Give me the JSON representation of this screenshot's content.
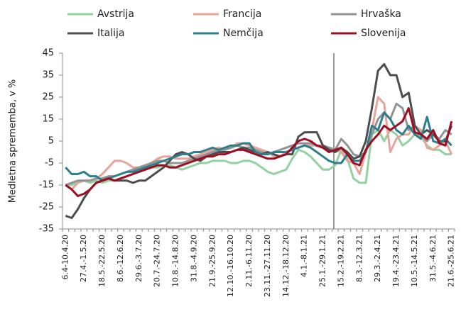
{
  "chart_data": {
    "type": "line",
    "y_label": "Medletna sprememba, v %",
    "categories": [
      "6.4-10.4.20",
      null,
      null,
      "27.4.-1.5.20",
      null,
      null,
      "18.5.-22.5.20",
      null,
      null,
      "8.6.-12.6.20",
      null,
      null,
      "29.6.-3.7.20",
      null,
      null,
      "20.7.-24.7.20",
      null,
      null,
      "10.8.-14.8.20",
      null,
      null,
      "31.8.-4.9.20",
      null,
      null,
      "21.9.-25.9.20",
      null,
      null,
      "12.10.-16.10.20",
      null,
      null,
      "2.11.-6.11.20",
      null,
      null,
      "23.11.-27.11.20",
      null,
      null,
      "14.12.-18.12.20",
      null,
      null,
      "4.1.-8.1.21",
      null,
      null,
      "25.1.-29.1.21",
      null,
      null,
      "15.2.-19.2.21",
      null,
      null,
      "8.3.-12.3.21",
      null,
      null,
      "29.3.-2.4.21",
      null,
      null,
      "19.4.-23.4.21",
      null,
      null,
      "10.5.-14.5.21",
      null,
      null,
      "31.5.-4.6.21",
      null,
      null,
      "21.6.-25.6.21"
    ],
    "series": [
      {
        "name": "Avstrija",
        "color": "#92d1a0",
        "values": [
          -15,
          -15,
          -14,
          -13,
          -14,
          -13,
          -14,
          -13,
          -13,
          -12,
          -11,
          -10,
          -9,
          -8,
          -7,
          -7,
          -6,
          -6,
          -7,
          -8,
          -7,
          -6,
          -5,
          -5,
          -4,
          -4,
          -4,
          -5,
          -5,
          -4,
          -4,
          -5,
          -7,
          -9,
          -10,
          -9,
          -8,
          -3,
          1,
          0,
          -2,
          -5,
          -8,
          -8,
          -6,
          1,
          -3,
          -12,
          -14,
          -14,
          8,
          10,
          5,
          10,
          8,
          3,
          5,
          8,
          7,
          3,
          1,
          1,
          -1,
          -1
        ]
      },
      {
        "name": "Francija",
        "color": "#e8a49b",
        "values": [
          -15,
          -17,
          -14,
          -13,
          -13,
          -12,
          -10,
          -7,
          -4,
          -4,
          -5,
          -7,
          -7,
          -6,
          -5,
          -3,
          -2,
          -2,
          -3,
          -3,
          -3,
          -2,
          -1,
          0,
          1,
          2,
          1,
          2,
          4,
          4,
          3,
          2,
          1,
          0,
          -2,
          -2,
          0,
          1,
          2,
          3,
          3,
          3,
          2,
          2,
          1,
          0,
          -4,
          -5,
          -10,
          0,
          10,
          25,
          22,
          0,
          6,
          8,
          8,
          12,
          10,
          2,
          1,
          3,
          5,
          -1
        ]
      },
      {
        "name": "Hrvaška",
        "color": "#939393",
        "values": [
          -15,
          -14,
          -13,
          -13,
          -13,
          -12,
          -12,
          -11,
          -11,
          -10,
          -9,
          -8,
          -7,
          -6,
          -5,
          -4,
          -4,
          -5,
          -5,
          -5,
          -4,
          -3,
          -2,
          -1,
          0,
          1,
          1,
          2,
          3,
          2,
          2,
          1,
          0,
          -1,
          0,
          1,
          2,
          3,
          4,
          4,
          4,
          3,
          3,
          2,
          1,
          6,
          3,
          -1,
          -2,
          0,
          8,
          15,
          18,
          15,
          22,
          20,
          10,
          12,
          8,
          5,
          8,
          6,
          10,
          8
        ]
      },
      {
        "name": "Italija",
        "color": "#4d4d4d",
        "values": [
          -29,
          -30,
          -26,
          -21,
          -17,
          -14,
          -13,
          -12,
          -13,
          -13,
          -13,
          -14,
          -13,
          -13,
          -11,
          -9,
          -7,
          -4,
          -1,
          0,
          -1,
          -3,
          -4,
          -2,
          -1,
          0,
          0,
          0,
          1,
          2,
          1,
          0,
          -1,
          0,
          -1,
          -2,
          -1,
          -1,
          7,
          9,
          9,
          9,
          3,
          1,
          0,
          2,
          0,
          -3,
          -2,
          5,
          20,
          37,
          40,
          35,
          35,
          25,
          27,
          12,
          8,
          10,
          8,
          5,
          5,
          12
        ]
      },
      {
        "name": "Nemčija",
        "color": "#2e7f8c",
        "values": [
          -7,
          -10,
          -10,
          -9,
          -11,
          -11,
          -13,
          -12,
          -11,
          -10,
          -9,
          -9,
          -8,
          -7,
          -6,
          -5,
          -4,
          -3,
          -2,
          -1,
          -1,
          0,
          0,
          1,
          2,
          1,
          2,
          3,
          3,
          4,
          4,
          0,
          -1,
          -1,
          0,
          0,
          0,
          1,
          2,
          3,
          2,
          0,
          -2,
          -4,
          -5,
          -5,
          -1,
          -4,
          -4,
          0,
          12,
          10,
          18,
          15,
          10,
          8,
          12,
          8,
          6,
          16,
          5,
          4,
          6,
          3
        ]
      },
      {
        "name": "Slovenija",
        "color": "#a00d22",
        "values": [
          -15,
          -17,
          -20,
          -19,
          -17,
          -14,
          -13,
          -12,
          -13,
          -12,
          -11,
          -10,
          -9,
          -8,
          -7,
          -6,
          -6,
          -7,
          -7,
          -6,
          -5,
          -4,
          -3,
          -2,
          -2,
          -1,
          -1,
          0,
          1,
          1,
          0,
          -1,
          -2,
          -3,
          -3,
          -2,
          -1,
          2,
          5,
          6,
          5,
          3,
          2,
          0,
          1,
          2,
          -1,
          -5,
          -6,
          1,
          5,
          8,
          12,
          10,
          12,
          14,
          20,
          9,
          8,
          6,
          10,
          4,
          3,
          14
        ]
      }
    ],
    "ylim": [
      -35,
      45
    ],
    "yticks": [
      -35,
      -25,
      -15,
      -5,
      5,
      15,
      25,
      35,
      45
    ],
    "grid": false
  }
}
